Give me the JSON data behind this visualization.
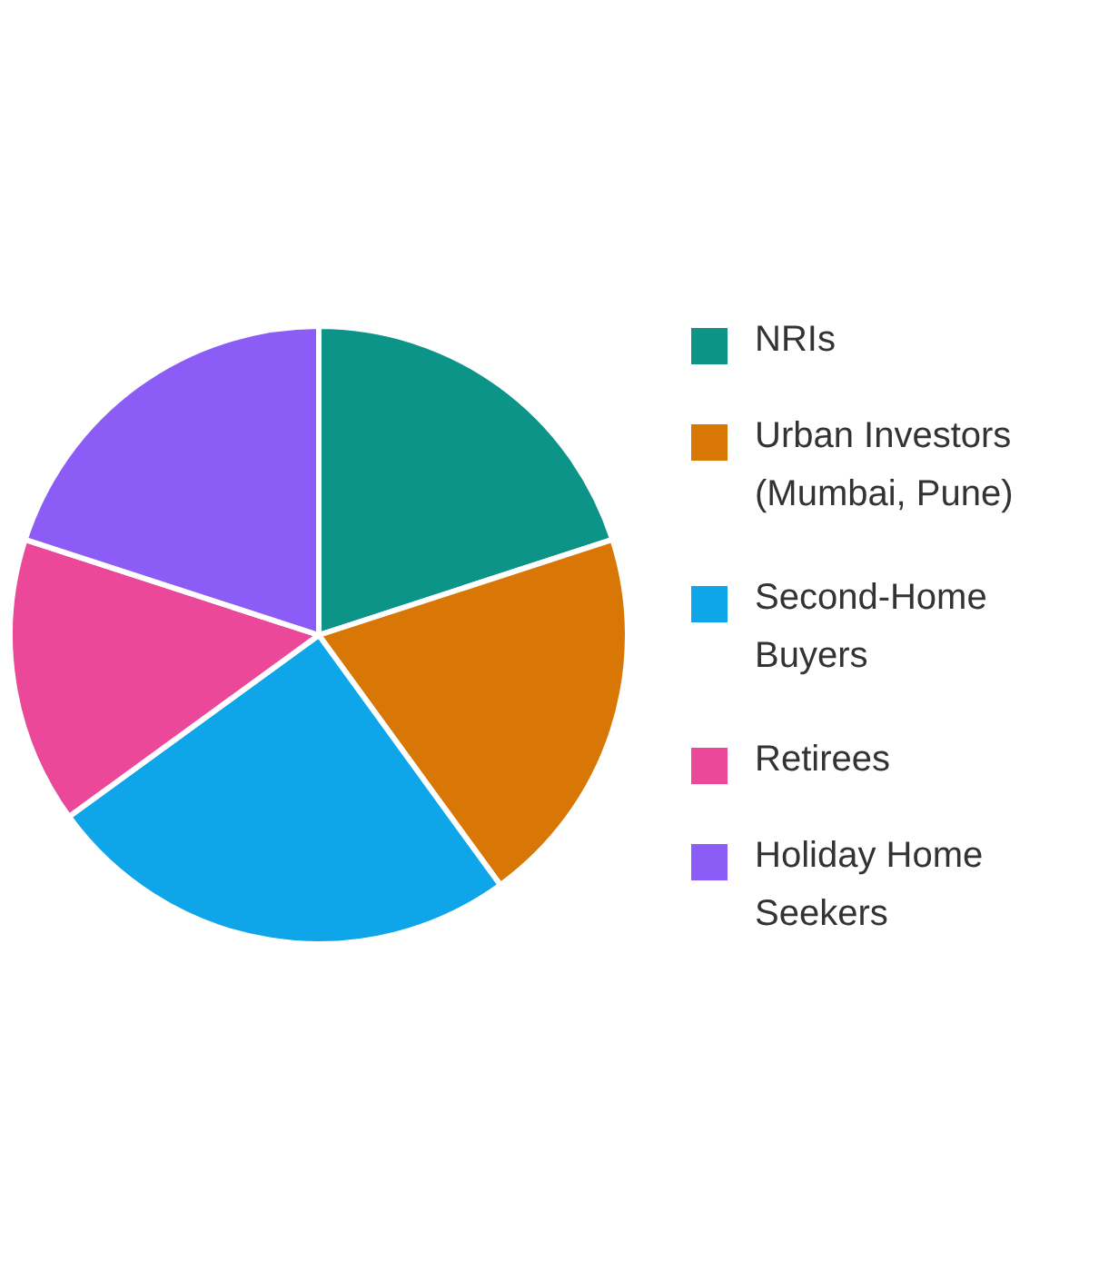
{
  "chart_data": {
    "type": "pie",
    "categories": [
      "NRIs",
      "Urban Investors (Mumbai, Pune)",
      "Second-Home Buyers",
      "Retirees",
      "Holiday Home Seekers"
    ],
    "values": [
      20,
      20,
      25,
      15,
      20
    ],
    "colors": [
      "#0d9488",
      "#d97706",
      "#0ea5e9",
      "#ec4899",
      "#8b5cf6"
    ],
    "legend": "right"
  }
}
